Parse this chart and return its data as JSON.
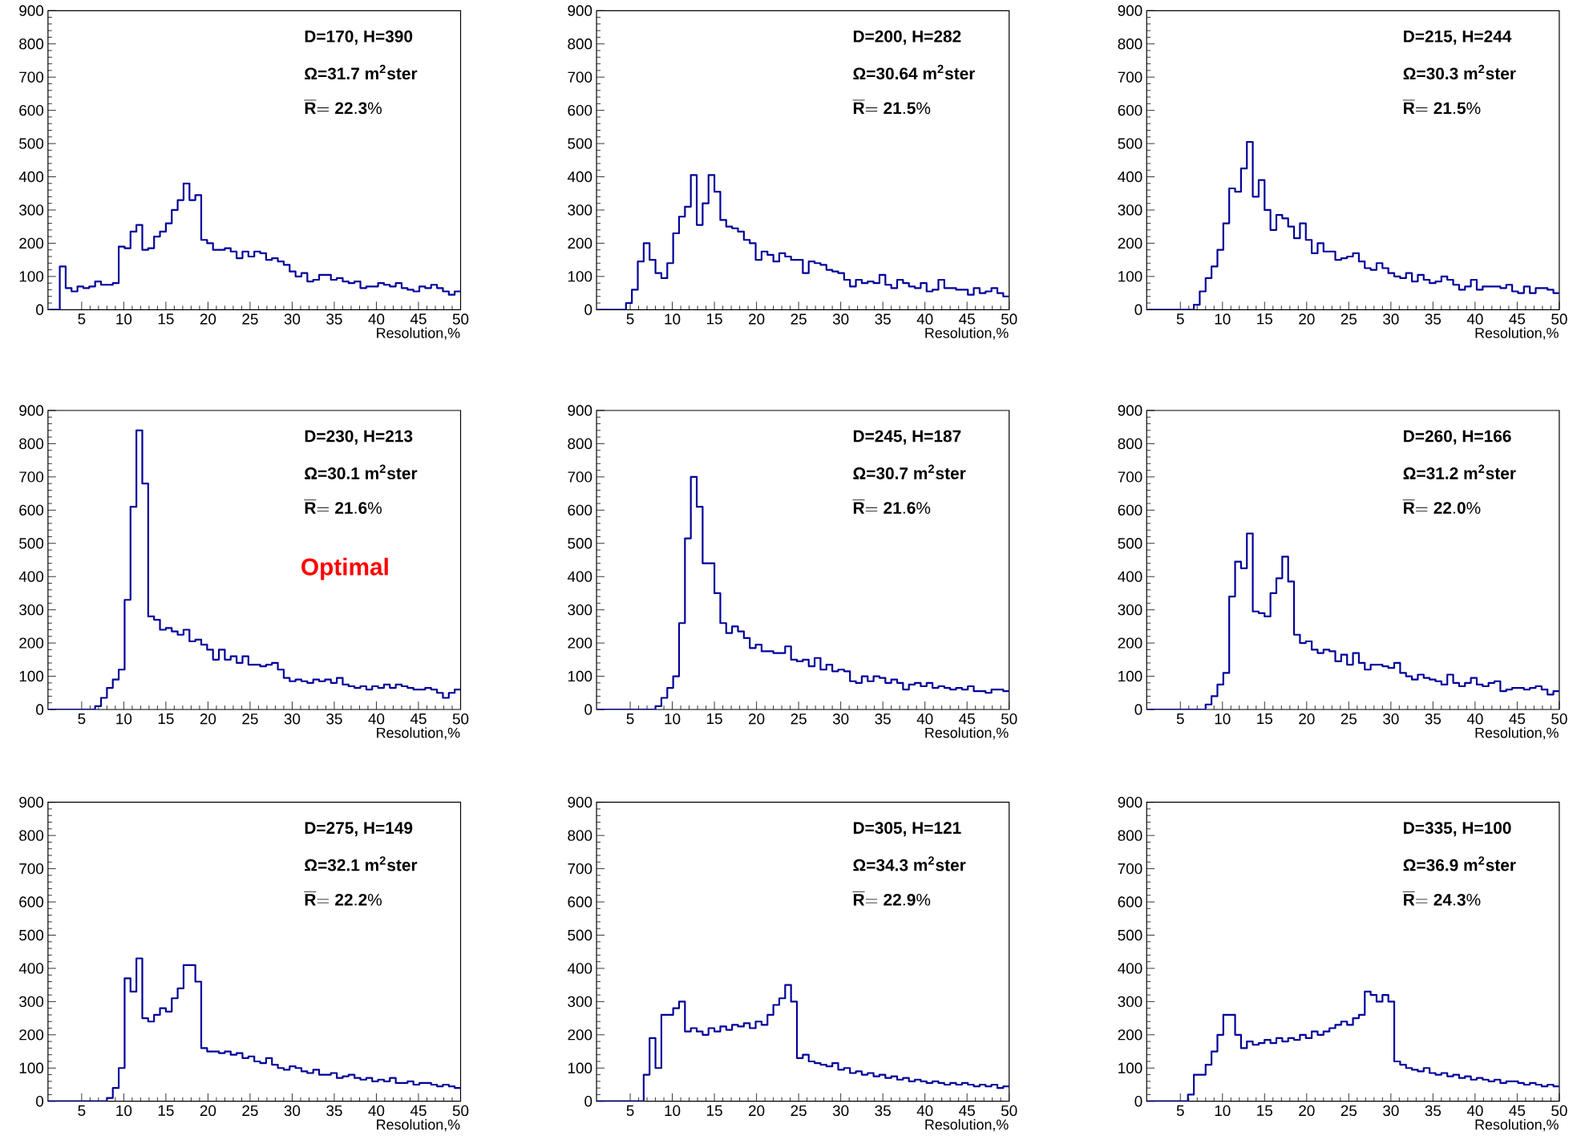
{
  "chart_data": [
    {
      "type": "histogram",
      "color": "#000099",
      "xlabel": "Resolution,%",
      "xlim": [
        1,
        50
      ],
      "ylim": [
        0,
        900
      ],
      "xticks": [
        5,
        10,
        15,
        20,
        25,
        30,
        35,
        40,
        45,
        50
      ],
      "yticks": [
        0,
        100,
        200,
        300,
        400,
        500,
        600,
        700,
        800,
        900
      ],
      "annotations": [
        "**D=170, H=390**",
        "**Ω=31.7 m$^{2}$ster**",
        "\\overline{\\mathbf{R}}\\mathbf{=22.3\\%}"
      ],
      "bins": [
        1,
        1.7,
        2.4,
        3.1,
        3.8,
        4.5,
        5.2,
        5.9,
        6.6,
        7.3,
        8,
        8.7,
        9.4,
        10.1,
        10.8,
        11.5,
        12.2,
        12.9,
        13.6,
        14.3,
        15,
        15.7,
        16.4,
        17.1,
        17.8,
        18.5,
        19.2,
        19.9,
        20.6,
        21.3,
        22,
        22.7,
        23.4,
        24.1,
        24.8,
        25.5,
        26.2,
        26.9,
        27.6,
        28.3,
        29,
        29.7,
        30.4,
        31.1,
        31.8,
        32.5,
        33.2,
        33.9,
        34.6,
        35.3,
        36,
        36.7,
        37.4,
        38.1,
        38.8,
        39.5,
        40.2,
        40.9,
        41.6,
        42.3,
        43,
        43.7,
        44.4,
        45.1,
        45.8,
        46.5,
        47.2,
        47.9,
        48.6,
        49.3,
        50
      ],
      "values": [
        0,
        0,
        130,
        65,
        55,
        70,
        65,
        70,
        85,
        75,
        75,
        80,
        190,
        185,
        235,
        255,
        180,
        185,
        220,
        235,
        260,
        300,
        330,
        380,
        330,
        345,
        210,
        200,
        180,
        180,
        185,
        175,
        155,
        175,
        160,
        175,
        170,
        150,
        155,
        145,
        135,
        115,
        100,
        110,
        85,
        90,
        105,
        105,
        90,
        95,
        85,
        80,
        85,
        65,
        70,
        70,
        80,
        75,
        70,
        80,
        65,
        60,
        55,
        70,
        65,
        75,
        65,
        55,
        45,
        55
      ]
    },
    {
      "type": "histogram",
      "color": "#000099",
      "xlabel": "Resolution,%",
      "xlim": [
        1,
        50
      ],
      "ylim": [
        0,
        900
      ],
      "xticks": [
        5,
        10,
        15,
        20,
        25,
        30,
        35,
        40,
        45,
        50
      ],
      "yticks": [
        0,
        100,
        200,
        300,
        400,
        500,
        600,
        700,
        800,
        900
      ],
      "annotations": [
        "**D=200, H=282**",
        "**Ω=30.64 m$^{2}$ster**",
        "\\overline{\\mathbf{R}}\\mathbf{=21.5\\%}"
      ],
      "bins": [
        1,
        1.7,
        2.4,
        3.1,
        3.8,
        4.5,
        5.2,
        5.9,
        6.6,
        7.3,
        8,
        8.7,
        9.4,
        10.1,
        10.8,
        11.5,
        12.2,
        12.9,
        13.6,
        14.3,
        15,
        15.7,
        16.4,
        17.1,
        17.8,
        18.5,
        19.2,
        19.9,
        20.6,
        21.3,
        22,
        22.7,
        23.4,
        24.1,
        24.8,
        25.5,
        26.2,
        26.9,
        27.6,
        28.3,
        29,
        29.7,
        30.4,
        31.1,
        31.8,
        32.5,
        33.2,
        33.9,
        34.6,
        35.3,
        36,
        36.7,
        37.4,
        38.1,
        38.8,
        39.5,
        40.2,
        40.9,
        41.6,
        42.3,
        43,
        43.7,
        44.4,
        45.1,
        45.8,
        46.5,
        47.2,
        47.9,
        48.6,
        49.3,
        50
      ],
      "values": [
        0,
        0,
        0,
        0,
        0,
        20,
        60,
        145,
        200,
        150,
        110,
        95,
        140,
        230,
        280,
        310,
        405,
        255,
        320,
        405,
        355,
        270,
        250,
        245,
        235,
        210,
        200,
        150,
        175,
        165,
        145,
        170,
        160,
        150,
        150,
        110,
        145,
        140,
        135,
        120,
        115,
        110,
        90,
        70,
        90,
        80,
        85,
        80,
        105,
        75,
        65,
        90,
        80,
        70,
        65,
        80,
        55,
        60,
        90,
        65,
        65,
        60,
        60,
        45,
        65,
        50,
        55,
        65,
        50,
        40
      ]
    },
    {
      "type": "histogram",
      "color": "#000099",
      "xlabel": "Resolution,%",
      "xlim": [
        1,
        50
      ],
      "ylim": [
        0,
        900
      ],
      "xticks": [
        5,
        10,
        15,
        20,
        25,
        30,
        35,
        40,
        45,
        50
      ],
      "yticks": [
        0,
        100,
        200,
        300,
        400,
        500,
        600,
        700,
        800,
        900
      ],
      "annotations": [
        "**D=215, H=244**",
        "**Ω=30.3 m$^{2}$ster**",
        "\\overline{\\mathbf{R}}\\mathbf{=21.5\\%}"
      ],
      "bins": [
        1,
        1.7,
        2.4,
        3.1,
        3.8,
        4.5,
        5.2,
        5.9,
        6.6,
        7.3,
        8,
        8.7,
        9.4,
        10.1,
        10.8,
        11.5,
        12.2,
        12.9,
        13.6,
        14.3,
        15,
        15.7,
        16.4,
        17.1,
        17.8,
        18.5,
        19.2,
        19.9,
        20.6,
        21.3,
        22,
        22.7,
        23.4,
        24.1,
        24.8,
        25.5,
        26.2,
        26.9,
        27.6,
        28.3,
        29,
        29.7,
        30.4,
        31.1,
        31.8,
        32.5,
        33.2,
        33.9,
        34.6,
        35.3,
        36,
        36.7,
        37.4,
        38.1,
        38.8,
        39.5,
        40.2,
        40.9,
        41.6,
        42.3,
        43,
        43.7,
        44.4,
        45.1,
        45.8,
        46.5,
        47.2,
        47.9,
        48.6,
        49.3,
        50
      ],
      "values": [
        0,
        0,
        0,
        0,
        0,
        0,
        0,
        0,
        15,
        55,
        95,
        130,
        180,
        260,
        365,
        355,
        425,
        505,
        340,
        390,
        300,
        240,
        285,
        275,
        250,
        215,
        260,
        210,
        170,
        200,
        175,
        175,
        150,
        155,
        160,
        170,
        145,
        125,
        120,
        140,
        125,
        110,
        100,
        95,
        110,
        85,
        105,
        90,
        80,
        85,
        100,
        90,
        75,
        60,
        70,
        90,
        60,
        70,
        70,
        70,
        65,
        75,
        55,
        50,
        70,
        50,
        65,
        65,
        60,
        50
      ]
    },
    {
      "type": "histogram",
      "color": "#000099",
      "xlabel": "Resolution,%",
      "xlim": [
        1,
        50
      ],
      "ylim": [
        0,
        900
      ],
      "xticks": [
        5,
        10,
        15,
        20,
        25,
        30,
        35,
        40,
        45,
        50
      ],
      "yticks": [
        0,
        100,
        200,
        300,
        400,
        500,
        600,
        700,
        800,
        900
      ],
      "annotations": [
        "**D=230, H=213**",
        "**Ω=30.1 m$^{2}$ster**",
        "\\overline{\\mathbf{R}}\\mathbf{=21.6\\%}",
        "**Optimal**"
      ],
      "bins": [
        1,
        1.7,
        2.4,
        3.1,
        3.8,
        4.5,
        5.2,
        5.9,
        6.6,
        7.3,
        8,
        8.7,
        9.4,
        10.1,
        10.8,
        11.5,
        12.2,
        12.9,
        13.6,
        14.3,
        15,
        15.7,
        16.4,
        17.1,
        17.8,
        18.5,
        19.2,
        19.9,
        20.6,
        21.3,
        22,
        22.7,
        23.4,
        24.1,
        24.8,
        25.5,
        26.2,
        26.9,
        27.6,
        28.3,
        29,
        29.7,
        30.4,
        31.1,
        31.8,
        32.5,
        33.2,
        33.9,
        34.6,
        35.3,
        36,
        36.7,
        37.4,
        38.1,
        38.8,
        39.5,
        40.2,
        40.9,
        41.6,
        42.3,
        43,
        43.7,
        44.4,
        45.1,
        45.8,
        46.5,
        47.2,
        47.9,
        48.6,
        49.3,
        50
      ],
      "values": [
        0,
        0,
        0,
        0,
        0,
        0,
        0,
        0,
        10,
        35,
        65,
        90,
        120,
        330,
        610,
        840,
        680,
        280,
        270,
        240,
        245,
        235,
        225,
        240,
        205,
        210,
        195,
        180,
        150,
        180,
        150,
        160,
        140,
        160,
        135,
        135,
        130,
        135,
        140,
        120,
        95,
        85,
        90,
        85,
        80,
        90,
        85,
        90,
        80,
        95,
        75,
        70,
        65,
        70,
        60,
        70,
        65,
        75,
        65,
        75,
        70,
        65,
        60,
        60,
        65,
        60,
        50,
        35,
        50,
        60
      ]
    },
    {
      "type": "histogram",
      "color": "#000099",
      "xlabel": "Resolution,%",
      "xlim": [
        1,
        50
      ],
      "ylim": [
        0,
        900
      ],
      "xticks": [
        5,
        10,
        15,
        20,
        25,
        30,
        35,
        40,
        45,
        50
      ],
      "yticks": [
        0,
        100,
        200,
        300,
        400,
        500,
        600,
        700,
        800,
        900
      ],
      "annotations": [
        "**D=245, H=187**",
        "**Ω=30.7 m$^{2}$ster**",
        "\\overline{\\mathbf{R}}\\mathbf{=21.6\\%}"
      ],
      "bins": [
        1,
        1.7,
        2.4,
        3.1,
        3.8,
        4.5,
        5.2,
        5.9,
        6.6,
        7.3,
        8,
        8.7,
        9.4,
        10.1,
        10.8,
        11.5,
        12.2,
        12.9,
        13.6,
        14.3,
        15,
        15.7,
        16.4,
        17.1,
        17.8,
        18.5,
        19.2,
        19.9,
        20.6,
        21.3,
        22,
        22.7,
        23.4,
        24.1,
        24.8,
        25.5,
        26.2,
        26.9,
        27.6,
        28.3,
        29,
        29.7,
        30.4,
        31.1,
        31.8,
        32.5,
        33.2,
        33.9,
        34.6,
        35.3,
        36,
        36.7,
        37.4,
        38.1,
        38.8,
        39.5,
        40.2,
        40.9,
        41.6,
        42.3,
        43,
        43.7,
        44.4,
        45.1,
        45.8,
        46.5,
        47.2,
        47.9,
        48.6,
        49.3,
        50
      ],
      "values": [
        0,
        0,
        0,
        0,
        0,
        0,
        0,
        0,
        0,
        0,
        10,
        35,
        65,
        100,
        260,
        515,
        700,
        610,
        440,
        440,
        350,
        260,
        230,
        250,
        235,
        215,
        185,
        195,
        175,
        175,
        170,
        170,
        190,
        150,
        145,
        150,
        130,
        155,
        120,
        135,
        115,
        120,
        115,
        85,
        80,
        100,
        85,
        100,
        95,
        80,
        90,
        80,
        60,
        75,
        80,
        70,
        80,
        65,
        70,
        65,
        60,
        65,
        60,
        70,
        55,
        55,
        50,
        60,
        60,
        55
      ]
    },
    {
      "type": "histogram",
      "color": "#000099",
      "xlabel": "Resolution,%",
      "xlim": [
        1,
        50
      ],
      "ylim": [
        0,
        900
      ],
      "xticks": [
        5,
        10,
        15,
        20,
        25,
        30,
        35,
        40,
        45,
        50
      ],
      "yticks": [
        0,
        100,
        200,
        300,
        400,
        500,
        600,
        700,
        800,
        900
      ],
      "annotations": [
        "**D=260, H=166**",
        "**Ω=31.2 m$^{2}$ster**",
        "\\overline{\\mathbf{R}}\\mathbf{=22.0\\%}"
      ],
      "bins": [
        1,
        1.7,
        2.4,
        3.1,
        3.8,
        4.5,
        5.2,
        5.9,
        6.6,
        7.3,
        8,
        8.7,
        9.4,
        10.1,
        10.8,
        11.5,
        12.2,
        12.9,
        13.6,
        14.3,
        15,
        15.7,
        16.4,
        17.1,
        17.8,
        18.5,
        19.2,
        19.9,
        20.6,
        21.3,
        22,
        22.7,
        23.4,
        24.1,
        24.8,
        25.5,
        26.2,
        26.9,
        27.6,
        28.3,
        29,
        29.7,
        30.4,
        31.1,
        31.8,
        32.5,
        33.2,
        33.9,
        34.6,
        35.3,
        36,
        36.7,
        37.4,
        38.1,
        38.8,
        39.5,
        40.2,
        40.9,
        41.6,
        42.3,
        43,
        43.7,
        44.4,
        45.1,
        45.8,
        46.5,
        47.2,
        47.9,
        48.6,
        49.3,
        50
      ],
      "values": [
        0,
        0,
        0,
        0,
        0,
        0,
        0,
        0,
        0,
        0,
        15,
        40,
        75,
        110,
        340,
        445,
        425,
        530,
        295,
        290,
        280,
        350,
        395,
        460,
        385,
        225,
        200,
        205,
        180,
        170,
        180,
        175,
        145,
        165,
        135,
        170,
        140,
        120,
        135,
        135,
        130,
        125,
        140,
        110,
        100,
        90,
        105,
        95,
        90,
        85,
        75,
        105,
        80,
        70,
        80,
        95,
        75,
        70,
        80,
        85,
        55,
        60,
        65,
        65,
        60,
        65,
        70,
        60,
        45,
        55
      ]
    },
    {
      "type": "histogram",
      "color": "#000099",
      "xlabel": "Resolution,%",
      "xlim": [
        1,
        50
      ],
      "ylim": [
        0,
        900
      ],
      "xticks": [
        5,
        10,
        15,
        20,
        25,
        30,
        35,
        40,
        45,
        50
      ],
      "yticks": [
        0,
        100,
        200,
        300,
        400,
        500,
        600,
        700,
        800,
        900
      ],
      "annotations": [
        "**D=275, H=149**",
        "**Ω=32.1 m$^{2}$ster**",
        "\\overline{\\mathbf{R}}\\mathbf{=22.2\\%}"
      ],
      "bins": [
        1,
        1.7,
        2.4,
        3.1,
        3.8,
        4.5,
        5.2,
        5.9,
        6.6,
        7.3,
        8,
        8.7,
        9.4,
        10.1,
        10.8,
        11.5,
        12.2,
        12.9,
        13.6,
        14.3,
        15,
        15.7,
        16.4,
        17.1,
        17.8,
        18.5,
        19.2,
        19.9,
        20.6,
        21.3,
        22,
        22.7,
        23.4,
        24.1,
        24.8,
        25.5,
        26.2,
        26.9,
        27.6,
        28.3,
        29,
        29.7,
        30.4,
        31.1,
        31.8,
        32.5,
        33.2,
        33.9,
        34.6,
        35.3,
        36,
        36.7,
        37.4,
        38.1,
        38.8,
        39.5,
        40.2,
        40.9,
        41.6,
        42.3,
        43,
        43.7,
        44.4,
        45.1,
        45.8,
        46.5,
        47.2,
        47.9,
        48.6,
        49.3,
        50
      ],
      "values": [
        0,
        0,
        0,
        0,
        0,
        0,
        0,
        0,
        0,
        0,
        10,
        40,
        100,
        370,
        330,
        430,
        250,
        240,
        260,
        280,
        270,
        310,
        340,
        410,
        410,
        360,
        160,
        150,
        150,
        145,
        150,
        140,
        145,
        130,
        135,
        120,
        115,
        130,
        110,
        100,
        95,
        105,
        100,
        90,
        85,
        95,
        80,
        80,
        85,
        70,
        75,
        80,
        70,
        65,
        70,
        60,
        65,
        60,
        70,
        55,
        55,
        60,
        50,
        55,
        55,
        50,
        45,
        50,
        45,
        40
      ]
    },
    {
      "type": "histogram",
      "color": "#000099",
      "xlabel": "Resolution,%",
      "xlim": [
        1,
        50
      ],
      "ylim": [
        0,
        900
      ],
      "xticks": [
        5,
        10,
        15,
        20,
        25,
        30,
        35,
        40,
        45,
        50
      ],
      "yticks": [
        0,
        100,
        200,
        300,
        400,
        500,
        600,
        700,
        800,
        900
      ],
      "annotations": [
        "**D=305, H=121**",
        "**Ω=34.3 m$^{2}$ster**",
        "\\overline{\\mathbf{R}}\\mathbf{=22.9\\%}"
      ],
      "bins": [
        1,
        1.7,
        2.4,
        3.1,
        3.8,
        4.5,
        5.2,
        5.9,
        6.6,
        7.3,
        8,
        8.7,
        9.4,
        10.1,
        10.8,
        11.5,
        12.2,
        12.9,
        13.6,
        14.3,
        15,
        15.7,
        16.4,
        17.1,
        17.8,
        18.5,
        19.2,
        19.9,
        20.6,
        21.3,
        22,
        22.7,
        23.4,
        24.1,
        24.8,
        25.5,
        26.2,
        26.9,
        27.6,
        28.3,
        29,
        29.7,
        30.4,
        31.1,
        31.8,
        32.5,
        33.2,
        33.9,
        34.6,
        35.3,
        36,
        36.7,
        37.4,
        38.1,
        38.8,
        39.5,
        40.2,
        40.9,
        41.6,
        42.3,
        43,
        43.7,
        44.4,
        45.1,
        45.8,
        46.5,
        47.2,
        47.9,
        48.6,
        49.3,
        50
      ],
      "values": [
        0,
        0,
        0,
        0,
        0,
        0,
        0,
        0,
        80,
        190,
        100,
        260,
        260,
        280,
        300,
        210,
        220,
        210,
        200,
        220,
        210,
        225,
        215,
        230,
        225,
        235,
        220,
        240,
        230,
        260,
        290,
        310,
        350,
        300,
        130,
        140,
        120,
        115,
        110,
        105,
        115,
        95,
        100,
        85,
        90,
        80,
        85,
        75,
        80,
        70,
        75,
        65,
        70,
        60,
        65,
        60,
        55,
        60,
        55,
        50,
        55,
        50,
        55,
        50,
        45,
        50,
        45,
        50,
        40,
        45
      ]
    },
    {
      "type": "histogram",
      "color": "#000099",
      "xlabel": "Resolution,%",
      "xlim": [
        1,
        50
      ],
      "ylim": [
        0,
        900
      ],
      "xticks": [
        5,
        10,
        15,
        20,
        25,
        30,
        35,
        40,
        45,
        50
      ],
      "yticks": [
        0,
        100,
        200,
        300,
        400,
        500,
        600,
        700,
        800,
        900
      ],
      "annotations": [
        "**D=335, H=100**",
        "**Ω=36.9 m$^{2}$ster**",
        "\\overline{\\mathbf{R}}\\mathbf{=24.3\\%}"
      ],
      "bins": [
        1,
        1.7,
        2.4,
        3.1,
        3.8,
        4.5,
        5.2,
        5.9,
        6.6,
        7.3,
        8,
        8.7,
        9.4,
        10.1,
        10.8,
        11.5,
        12.2,
        12.9,
        13.6,
        14.3,
        15,
        15.7,
        16.4,
        17.1,
        17.8,
        18.5,
        19.2,
        19.9,
        20.6,
        21.3,
        22,
        22.7,
        23.4,
        24.1,
        24.8,
        25.5,
        26.2,
        26.9,
        27.6,
        28.3,
        29,
        29.7,
        30.4,
        31.1,
        31.8,
        32.5,
        33.2,
        33.9,
        34.6,
        35.3,
        36,
        36.7,
        37.4,
        38.1,
        38.8,
        39.5,
        40.2,
        40.9,
        41.6,
        42.3,
        43,
        43.7,
        44.4,
        45.1,
        45.8,
        46.5,
        47.2,
        47.9,
        48.6,
        49.3,
        50
      ],
      "values": [
        0,
        0,
        0,
        0,
        0,
        0,
        0,
        20,
        80,
        80,
        110,
        150,
        200,
        260,
        260,
        200,
        160,
        180,
        170,
        175,
        185,
        175,
        190,
        180,
        190,
        185,
        200,
        190,
        210,
        200,
        210,
        220,
        230,
        240,
        230,
        250,
        260,
        330,
        320,
        300,
        320,
        300,
        120,
        110,
        100,
        95,
        90,
        100,
        85,
        80,
        85,
        75,
        80,
        70,
        75,
        65,
        70,
        65,
        60,
        65,
        55,
        60,
        60,
        55,
        50,
        55,
        50,
        45,
        50,
        45
      ]
    }
  ]
}
